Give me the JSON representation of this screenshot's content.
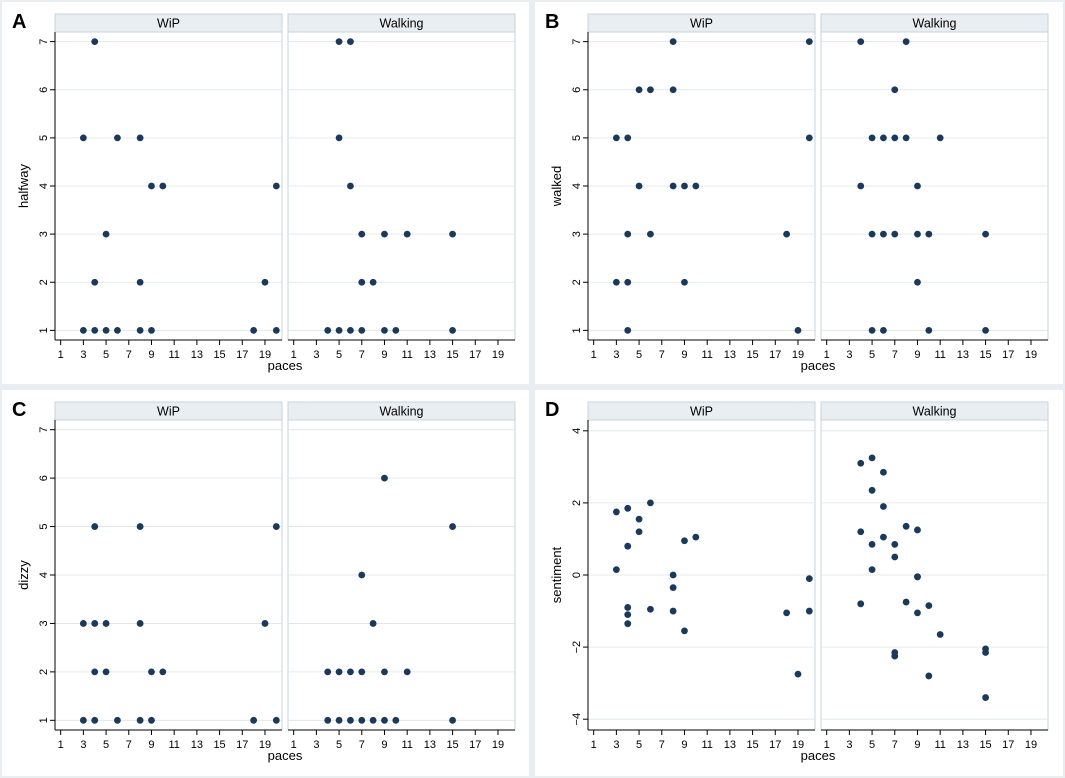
{
  "chart_data": [
    {
      "panel_letter": "A",
      "type": "scatter",
      "ylabel": "halfway",
      "xlabel": "paces",
      "xticks": [
        1,
        3,
        5,
        7,
        9,
        11,
        13,
        15,
        17,
        19
      ],
      "yticks": [
        1,
        2,
        3,
        4,
        5,
        6,
        7
      ],
      "xlim": [
        0.5,
        20.5
      ],
      "ylim": [
        0.8,
        7.2
      ],
      "facets": [
        {
          "title": "WiP",
          "points": [
            [
              3,
              1
            ],
            [
              3,
              5
            ],
            [
              4,
              1
            ],
            [
              4,
              2
            ],
            [
              4,
              7
            ],
            [
              5,
              1
            ],
            [
              5,
              3
            ],
            [
              6,
              1
            ],
            [
              6,
              5
            ],
            [
              8,
              1
            ],
            [
              8,
              2
            ],
            [
              8,
              5
            ],
            [
              9,
              1
            ],
            [
              9,
              4
            ],
            [
              10,
              4
            ],
            [
              18,
              1
            ],
            [
              19,
              2
            ],
            [
              20,
              1
            ],
            [
              20,
              4
            ]
          ]
        },
        {
          "title": "Walking",
          "points": [
            [
              4,
              1
            ],
            [
              5,
              1
            ],
            [
              5,
              5
            ],
            [
              5,
              7
            ],
            [
              6,
              1
            ],
            [
              6,
              4
            ],
            [
              6,
              7
            ],
            [
              7,
              1
            ],
            [
              7,
              2
            ],
            [
              7,
              3
            ],
            [
              8,
              2
            ],
            [
              9,
              1
            ],
            [
              9,
              3
            ],
            [
              10,
              1
            ],
            [
              11,
              3
            ],
            [
              15,
              1
            ],
            [
              15,
              3
            ]
          ]
        }
      ]
    },
    {
      "panel_letter": "B",
      "type": "scatter",
      "ylabel": "walked",
      "xlabel": "paces",
      "xticks": [
        1,
        3,
        5,
        7,
        9,
        11,
        13,
        15,
        17,
        19
      ],
      "yticks": [
        1,
        2,
        3,
        4,
        5,
        6,
        7
      ],
      "xlim": [
        0.5,
        20.5
      ],
      "ylim": [
        0.8,
        7.2
      ],
      "facets": [
        {
          "title": "WiP",
          "points": [
            [
              3,
              2
            ],
            [
              3,
              5
            ],
            [
              4,
              1
            ],
            [
              4,
              2
            ],
            [
              4,
              3
            ],
            [
              4,
              5
            ],
            [
              5,
              4
            ],
            [
              5,
              6
            ],
            [
              6,
              3
            ],
            [
              6,
              6
            ],
            [
              8,
              4
            ],
            [
              8,
              6
            ],
            [
              8,
              7
            ],
            [
              9,
              2
            ],
            [
              9,
              4
            ],
            [
              10,
              4
            ],
            [
              18,
              3
            ],
            [
              19,
              1
            ],
            [
              20,
              5
            ],
            [
              20,
              7
            ]
          ]
        },
        {
          "title": "Walking",
          "points": [
            [
              4,
              4
            ],
            [
              4,
              7
            ],
            [
              5,
              1
            ],
            [
              5,
              3
            ],
            [
              5,
              5
            ],
            [
              6,
              1
            ],
            [
              6,
              3
            ],
            [
              6,
              5
            ],
            [
              7,
              3
            ],
            [
              7,
              5
            ],
            [
              7,
              6
            ],
            [
              8,
              5
            ],
            [
              8,
              7
            ],
            [
              9,
              2
            ],
            [
              9,
              3
            ],
            [
              9,
              4
            ],
            [
              10,
              1
            ],
            [
              10,
              3
            ],
            [
              11,
              5
            ],
            [
              15,
              1
            ],
            [
              15,
              3
            ]
          ]
        }
      ]
    },
    {
      "panel_letter": "C",
      "type": "scatter",
      "ylabel": "dizzy",
      "xlabel": "paces",
      "xticks": [
        1,
        3,
        5,
        7,
        9,
        11,
        13,
        15,
        17,
        19
      ],
      "yticks": [
        1,
        2,
        3,
        4,
        5,
        6,
        7
      ],
      "xlim": [
        0.5,
        20.5
      ],
      "ylim": [
        0.8,
        7.2
      ],
      "facets": [
        {
          "title": "WiP",
          "points": [
            [
              3,
              1
            ],
            [
              3,
              3
            ],
            [
              4,
              1
            ],
            [
              4,
              2
            ],
            [
              4,
              3
            ],
            [
              4,
              5
            ],
            [
              5,
              2
            ],
            [
              5,
              3
            ],
            [
              6,
              1
            ],
            [
              8,
              1
            ],
            [
              8,
              3
            ],
            [
              8,
              5
            ],
            [
              9,
              1
            ],
            [
              9,
              2
            ],
            [
              10,
              2
            ],
            [
              18,
              1
            ],
            [
              19,
              3
            ],
            [
              20,
              1
            ],
            [
              20,
              5
            ]
          ]
        },
        {
          "title": "Walking",
          "points": [
            [
              4,
              1
            ],
            [
              4,
              2
            ],
            [
              5,
              1
            ],
            [
              5,
              2
            ],
            [
              6,
              1
            ],
            [
              6,
              2
            ],
            [
              7,
              1
            ],
            [
              7,
              2
            ],
            [
              7,
              4
            ],
            [
              8,
              1
            ],
            [
              8,
              3
            ],
            [
              9,
              1
            ],
            [
              9,
              2
            ],
            [
              9,
              6
            ],
            [
              10,
              1
            ],
            [
              11,
              2
            ],
            [
              15,
              1
            ],
            [
              15,
              5
            ]
          ]
        }
      ]
    },
    {
      "panel_letter": "D",
      "type": "scatter",
      "ylabel": "sentiment",
      "xlabel": "paces",
      "xticks": [
        1,
        3,
        5,
        7,
        9,
        11,
        13,
        15,
        17,
        19
      ],
      "yticks": [
        -4,
        -2,
        0,
        2,
        4
      ],
      "ytick_labels": [
        "−4",
        "−2",
        "0",
        "2",
        "4"
      ],
      "xlim": [
        0.5,
        20.5
      ],
      "ylim": [
        -4.3,
        4.3
      ],
      "facets": [
        {
          "title": "WiP",
          "points": [
            [
              3,
              1.75
            ],
            [
              3,
              0.15
            ],
            [
              4,
              1.85
            ],
            [
              4,
              0.8
            ],
            [
              4,
              -0.9
            ],
            [
              4,
              -1.1
            ],
            [
              4,
              -1.35
            ],
            [
              5,
              1.55
            ],
            [
              5,
              1.2
            ],
            [
              6,
              2.0
            ],
            [
              6,
              -0.95
            ],
            [
              8,
              0.0
            ],
            [
              8,
              -0.35
            ],
            [
              8,
              -1.0
            ],
            [
              9,
              0.95
            ],
            [
              9,
              -1.55
            ],
            [
              10,
              1.05
            ],
            [
              18,
              -1.05
            ],
            [
              19,
              -2.75
            ],
            [
              20,
              -0.1
            ],
            [
              20,
              -1.0
            ]
          ]
        },
        {
          "title": "Walking",
          "points": [
            [
              4,
              3.1
            ],
            [
              4,
              1.2
            ],
            [
              4,
              -0.8
            ],
            [
              5,
              3.25
            ],
            [
              5,
              2.35
            ],
            [
              5,
              0.85
            ],
            [
              5,
              0.15
            ],
            [
              6,
              2.85
            ],
            [
              6,
              1.9
            ],
            [
              6,
              1.05
            ],
            [
              7,
              0.85
            ],
            [
              7,
              0.5
            ],
            [
              7,
              -2.15
            ],
            [
              7,
              -2.25
            ],
            [
              8,
              1.35
            ],
            [
              8,
              -0.75
            ],
            [
              9,
              1.25
            ],
            [
              9,
              -0.05
            ],
            [
              9,
              -0.05
            ],
            [
              9,
              -1.05
            ],
            [
              10,
              -0.85
            ],
            [
              10,
              -2.8
            ],
            [
              11,
              -1.65
            ],
            [
              15,
              -2.05
            ],
            [
              15,
              -2.15
            ],
            [
              15,
              -3.4
            ]
          ]
        }
      ]
    }
  ]
}
